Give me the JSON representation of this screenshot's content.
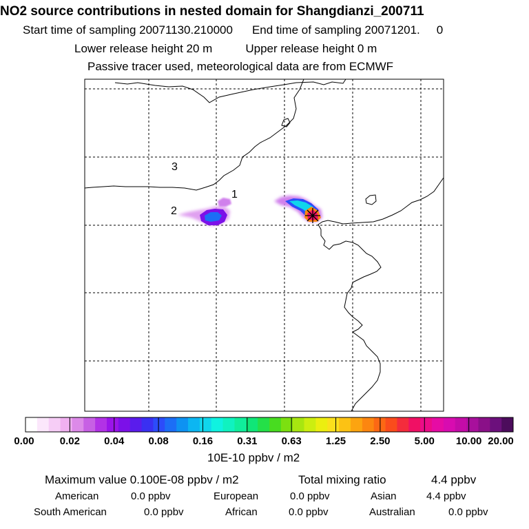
{
  "header": {
    "title": "NO2 source contributions in nested domain for Shangdianzi_200711",
    "line1_start_label": "Start time of sampling 20071130.210000",
    "line1_end_label": "End time of sampling 20071201.",
    "line1_end_value": "0",
    "line2_lower": "Lower release height   20 m",
    "line2_upper": "Upper release height    0 m",
    "line3": "Passive tracer used, meteorological data are from ECMWF"
  },
  "map": {
    "markers": [
      {
        "label": "1"
      },
      {
        "label": "2"
      },
      {
        "label": "3"
      }
    ],
    "receptor_icon": "star-receptor-icon"
  },
  "colorbar": {
    "ticks": [
      "0.00",
      "0.02",
      "0.04",
      "0.08",
      "0.16",
      "0.31",
      "0.63",
      "1.25",
      "2.50",
      "5.00",
      "10.00",
      "20.00"
    ],
    "colors": [
      "#ffffff",
      "#fbe7fb",
      "#f6cdf6",
      "#f0b0f0",
      "#dc8ae8",
      "#c760e4",
      "#b232e6",
      "#9a14ea",
      "#7c10e8",
      "#5a1cec",
      "#3a30f2",
      "#2c4cfa",
      "#1c6ef6",
      "#0e92f2",
      "#0cb6f2",
      "#10d6ec",
      "#10f2e0",
      "#10f2c0",
      "#10ee9c",
      "#10e678",
      "#24e048",
      "#48dc20",
      "#7ce010",
      "#a8e610",
      "#ccee10",
      "#ecee10",
      "#fce01c",
      "#fcc214",
      "#fca410",
      "#fc8610",
      "#fc6814",
      "#fa4c1c",
      "#f42c3c",
      "#f01064",
      "#ec0c88",
      "#e60ca4",
      "#d80cb0",
      "#c40ca8",
      "#a8109c",
      "#8a1088",
      "#6c107c",
      "#4c0c5c"
    ],
    "unit": "10E-10 ppbv / m2"
  },
  "summary": {
    "max_label": "Maximum value  0.100E-08 ppbv / m2",
    "total_label": "Total mixing ratio",
    "total_value": "4.4 ppbv",
    "regions": [
      {
        "name": "American",
        "value": "0.0 ppbv"
      },
      {
        "name": "European",
        "value": "0.0 ppbv"
      },
      {
        "name": "Asian",
        "value": "4.4 ppbv"
      },
      {
        "name": "South American",
        "value": "0.0 ppbv"
      },
      {
        "name": "African",
        "value": "0.0 ppbv"
      },
      {
        "name": "Australian",
        "value": "0.0 ppbv"
      }
    ]
  }
}
